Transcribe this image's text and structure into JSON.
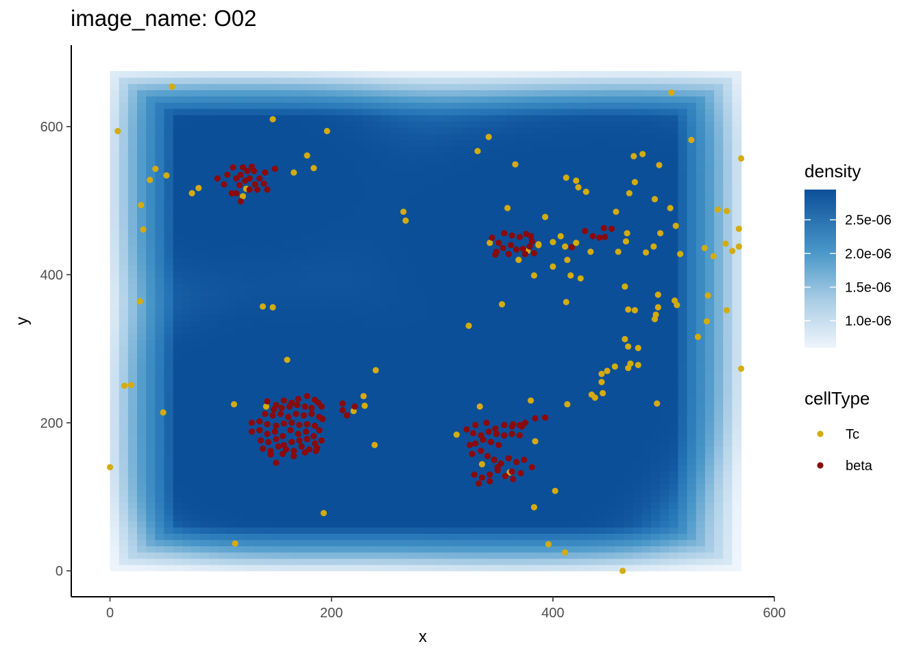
{
  "chart_data": {
    "type": "scatter",
    "title": "image_name: O02",
    "xlabel": "x",
    "ylabel": "y",
    "xlim": [
      -35,
      600
    ],
    "ylim": [
      -35,
      710
    ],
    "x_ticks": [
      "0",
      "200",
      "400",
      "600"
    ],
    "x_tick_values": [
      0,
      200,
      400,
      600
    ],
    "y_ticks": [
      "0",
      "200",
      "400",
      "600"
    ],
    "y_tick_values": [
      0,
      200,
      400,
      600
    ],
    "grid": false,
    "background": {
      "type": "heatmap",
      "name": "density",
      "x_range": [
        0,
        570
      ],
      "y_range": [
        0,
        675
      ],
      "color_low": "#f7fbff",
      "color_high": "#08519c",
      "legend_ticks": [
        "2.5e-06",
        "2.0e-06",
        "1.5e-06",
        "1.0e-06"
      ],
      "legend_values": [
        2.5e-06,
        2e-06,
        1.5e-06,
        1e-06
      ],
      "min": 6e-07,
      "max": 2.95e-06
    },
    "legend": {
      "placement": "right",
      "density_title": "density",
      "celltype_title": "cellType"
    },
    "series": [
      {
        "name": "Tc",
        "color": "#d4ac0d",
        "points": [
          [
            56,
            654
          ],
          [
            7,
            594
          ],
          [
            147,
            610
          ],
          [
            196,
            594
          ],
          [
            507,
            646
          ],
          [
            525,
            582
          ],
          [
            570,
            557
          ],
          [
            481,
            563
          ],
          [
            473,
            560
          ],
          [
            496,
            548
          ],
          [
            41,
            543
          ],
          [
            36,
            528
          ],
          [
            51,
            534
          ],
          [
            166,
            538
          ],
          [
            184,
            544
          ],
          [
            178,
            561
          ],
          [
            332,
            567
          ],
          [
            342,
            586
          ],
          [
            366,
            549
          ],
          [
            412,
            531
          ],
          [
            421,
            527
          ],
          [
            423,
            518
          ],
          [
            430,
            512
          ],
          [
            469,
            510
          ],
          [
            474,
            525
          ],
          [
            28,
            494
          ],
          [
            30,
            461
          ],
          [
            80,
            517
          ],
          [
            74,
            510
          ],
          [
            123,
            516
          ],
          [
            120,
            506
          ],
          [
            265,
            485
          ],
          [
            267,
            473
          ],
          [
            359,
            490
          ],
          [
            393,
            478
          ],
          [
            457,
            485
          ],
          [
            492,
            502
          ],
          [
            506,
            490
          ],
          [
            511,
            466
          ],
          [
            549,
            488
          ],
          [
            557,
            486
          ],
          [
            568,
            462
          ],
          [
            568,
            438
          ],
          [
            556,
            442
          ],
          [
            562,
            432
          ],
          [
            545,
            425
          ],
          [
            537,
            436
          ],
          [
            515,
            428
          ],
          [
            497,
            456
          ],
          [
            491,
            438
          ],
          [
            484,
            430
          ],
          [
            467,
            456
          ],
          [
            466,
            445
          ],
          [
            459,
            431
          ],
          [
            407,
            452
          ],
          [
            411,
            438
          ],
          [
            400,
            444
          ],
          [
            387,
            440
          ],
          [
            343,
            443
          ],
          [
            377,
            432
          ],
          [
            387,
            441
          ],
          [
            421,
            443
          ],
          [
            434,
            431
          ],
          [
            369,
            420
          ],
          [
            413,
            420
          ],
          [
            400,
            411
          ],
          [
            416,
            399
          ],
          [
            425,
            395
          ],
          [
            383,
            399
          ],
          [
            412,
            363
          ],
          [
            354,
            360
          ],
          [
            138,
            357
          ],
          [
            147,
            356
          ],
          [
            27,
            364
          ],
          [
            465,
            384
          ],
          [
            495,
            373
          ],
          [
            510,
            365
          ],
          [
            512,
            359
          ],
          [
            495,
            356
          ],
          [
            540,
            372
          ],
          [
            557,
            352
          ],
          [
            539,
            337
          ],
          [
            531,
            316
          ],
          [
            493,
            346
          ],
          [
            492,
            340
          ],
          [
            468,
            353
          ],
          [
            474,
            352
          ],
          [
            465,
            313
          ],
          [
            468,
            303
          ],
          [
            477,
            301
          ],
          [
            324,
            331
          ],
          [
            160,
            285
          ],
          [
            240,
            271
          ],
          [
            13,
            250
          ],
          [
            19,
            251
          ],
          [
            48,
            214
          ],
          [
            112,
            225
          ],
          [
            141,
            222
          ],
          [
            220,
            216
          ],
          [
            229,
            236
          ],
          [
            230,
            223
          ],
          [
            239,
            170
          ],
          [
            334,
            222
          ],
          [
            380,
            230
          ],
          [
            413,
            225
          ],
          [
            435,
            238
          ],
          [
            438,
            234
          ],
          [
            445,
            240
          ],
          [
            444,
            255
          ],
          [
            444,
            266
          ],
          [
            449,
            270
          ],
          [
            456,
            276
          ],
          [
            470,
            280
          ],
          [
            468,
            274
          ],
          [
            477,
            278
          ],
          [
            494,
            226
          ],
          [
            570,
            273
          ],
          [
            313,
            184
          ],
          [
            336,
            144
          ],
          [
            361,
            133
          ],
          [
            384,
            175
          ],
          [
            402,
            108
          ],
          [
            383,
            86
          ],
          [
            396,
            36
          ],
          [
            411,
            25
          ],
          [
            463,
            0
          ],
          [
            193,
            78
          ],
          [
            113,
            37
          ],
          [
            0,
            140
          ]
        ]
      },
      {
        "name": "beta",
        "color": "#8b0a0a",
        "points": [
          [
            97,
            530
          ],
          [
            103,
            522
          ],
          [
            106,
            535
          ],
          [
            111,
            545
          ],
          [
            114,
            530
          ],
          [
            117,
            521
          ],
          [
            114,
            510
          ],
          [
            120,
            545
          ],
          [
            118,
            535
          ],
          [
            124,
            540
          ],
          [
            128,
            546
          ],
          [
            122,
            527
          ],
          [
            126,
            530
          ],
          [
            130,
            540
          ],
          [
            131,
            522
          ],
          [
            133,
            515
          ],
          [
            139,
            523
          ],
          [
            142,
            515
          ],
          [
            140,
            538
          ],
          [
            149,
            543
          ],
          [
            110,
            510
          ],
          [
            118,
            499
          ],
          [
            126,
            515
          ],
          [
            135,
            530
          ],
          [
            142,
            229
          ],
          [
            150,
            224
          ],
          [
            157,
            230
          ],
          [
            164,
            227
          ],
          [
            170,
            232
          ],
          [
            178,
            236
          ],
          [
            185,
            231
          ],
          [
            188,
            227
          ],
          [
            191,
            222
          ],
          [
            148,
            218
          ],
          [
            155,
            220
          ],
          [
            162,
            222
          ],
          [
            169,
            224
          ],
          [
            176,
            222
          ],
          [
            182,
            220
          ],
          [
            140,
            212
          ],
          [
            147,
            210
          ],
          [
            154,
            212
          ],
          [
            161,
            208
          ],
          [
            168,
            212
          ],
          [
            175,
            210
          ],
          [
            182,
            212
          ],
          [
            189,
            208
          ],
          [
            192,
            205
          ],
          [
            128,
            200
          ],
          [
            135,
            202
          ],
          [
            142,
            198
          ],
          [
            150,
            196
          ],
          [
            157,
            199
          ],
          [
            164,
            200
          ],
          [
            171,
            197
          ],
          [
            178,
            198
          ],
          [
            185,
            196
          ],
          [
            128,
            188
          ],
          [
            135,
            190
          ],
          [
            142,
            185
          ],
          [
            149,
            188
          ],
          [
            156,
            182
          ],
          [
            163,
            190
          ],
          [
            170,
            185
          ],
          [
            177,
            188
          ],
          [
            184,
            182
          ],
          [
            189,
            190
          ],
          [
            136,
            176
          ],
          [
            143,
            174
          ],
          [
            150,
            178
          ],
          [
            157,
            170
          ],
          [
            164,
            174
          ],
          [
            171,
            176
          ],
          [
            178,
            178
          ],
          [
            185,
            172
          ],
          [
            191,
            176
          ],
          [
            138,
            165
          ],
          [
            145,
            162
          ],
          [
            152,
            168
          ],
          [
            159,
            164
          ],
          [
            166,
            162
          ],
          [
            173,
            168
          ],
          [
            180,
            164
          ],
          [
            187,
            166
          ],
          [
            145,
            157
          ],
          [
            156,
            158
          ],
          [
            166,
            155
          ],
          [
            176,
            160
          ],
          [
            186,
            162
          ],
          [
            150,
            146
          ],
          [
            210,
            226
          ],
          [
            210,
            217
          ],
          [
            214,
            210
          ],
          [
            221,
            222
          ],
          [
            330,
            197
          ],
          [
            340,
            200
          ],
          [
            348,
            192
          ],
          [
            356,
            197
          ],
          [
            363,
            195
          ],
          [
            370,
            197
          ],
          [
            375,
            200
          ],
          [
            384,
            206
          ],
          [
            393,
            207
          ],
          [
            364,
            198
          ],
          [
            372,
            195
          ],
          [
            322,
            191
          ],
          [
            328,
            186
          ],
          [
            335,
            183
          ],
          [
            342,
            188
          ],
          [
            349,
            185
          ],
          [
            356,
            183
          ],
          [
            363,
            185
          ],
          [
            370,
            183
          ],
          [
            330,
            172
          ],
          [
            337,
            177
          ],
          [
            344,
            174
          ],
          [
            351,
            170
          ],
          [
            325,
            170
          ],
          [
            327,
            158
          ],
          [
            335,
            162
          ],
          [
            341,
            155
          ],
          [
            347,
            150
          ],
          [
            353,
            145
          ],
          [
            360,
            152
          ],
          [
            367,
            147
          ],
          [
            374,
            150
          ],
          [
            381,
            140
          ],
          [
            329,
            130
          ],
          [
            336,
            126
          ],
          [
            343,
            130
          ],
          [
            350,
            136
          ],
          [
            357,
            128
          ],
          [
            364,
            124
          ],
          [
            371,
            132
          ],
          [
            333,
            118
          ],
          [
            343,
            121
          ],
          [
            363,
            134
          ],
          [
            350,
            140
          ],
          [
            345,
            450
          ],
          [
            351,
            443
          ],
          [
            356,
            456
          ],
          [
            363,
            453
          ],
          [
            370,
            451
          ],
          [
            376,
            455
          ],
          [
            381,
            445
          ],
          [
            349,
            431
          ],
          [
            355,
            436
          ],
          [
            362,
            440
          ],
          [
            367,
            434
          ],
          [
            373,
            435
          ],
          [
            379,
            438
          ],
          [
            383,
            429
          ],
          [
            360,
            428
          ],
          [
            375,
            428
          ],
          [
            348,
            427
          ],
          [
            380,
            452
          ],
          [
            429,
            459
          ],
          [
            436,
            452
          ],
          [
            442,
            450
          ],
          [
            446,
            463
          ],
          [
            447,
            451
          ],
          [
            453,
            462
          ],
          [
            417,
            437
          ]
        ]
      }
    ]
  }
}
